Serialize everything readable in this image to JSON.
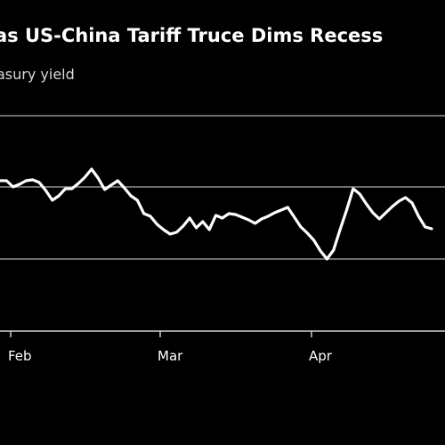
{
  "chart_data": {
    "type": "line",
    "title": "as US-China Tariff Truce Dims Recess",
    "subtitle": "asury yield",
    "xlabel": "",
    "ylabel": "",
    "x_ticks": [
      "Feb",
      "Mar",
      "Apr"
    ],
    "grid": "horizontal",
    "colors": {
      "background": "#000000",
      "line": "#ffffff",
      "grid": "#6e6e6e",
      "axis": "#cfcfcf",
      "text": "#ffffff"
    },
    "series": [
      {
        "values": [
          203,
          203,
          210,
          207,
          203,
          202,
          205,
          214,
          225,
          220,
          212,
          212,
          206,
          199,
          190,
          200,
          213,
          208,
          203,
          211,
          220,
          225,
          240,
          243,
          252,
          258,
          263,
          261,
          254,
          245,
          256,
          249,
          258,
          242,
          245,
          240,
          241,
          244,
          247,
          251,
          246,
          243,
          239,
          236,
          233,
          244,
          255,
          262,
          270,
          282,
          291,
          281,
          258,
          236,
          212,
          218,
          229,
          239,
          246,
          239,
          232,
          226,
          222,
          228,
          243,
          255,
          257
        ]
      }
    ]
  }
}
